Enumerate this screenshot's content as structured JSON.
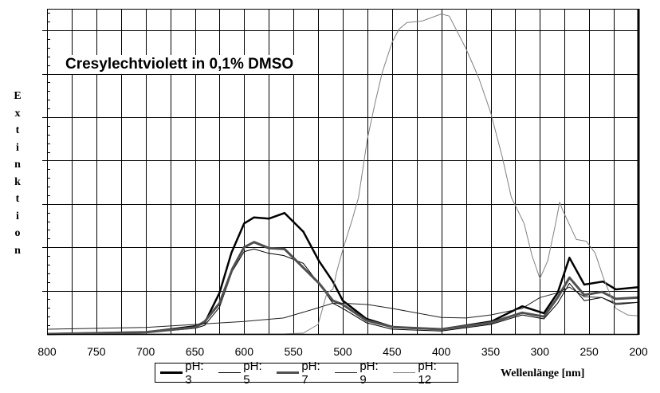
{
  "chart_data": {
    "type": "line",
    "title": "Cresylechtviolett in 0,1% DMSO",
    "xlabel": "Wellenlänge [nm]",
    "ylabel": "Extinktion",
    "xlim": [
      800,
      200
    ],
    "x_reversed": true,
    "ylim": [
      0,
      7.5
    ],
    "y_units": "gridline units (no tick labels printed)",
    "xticks": [
      800,
      750,
      700,
      650,
      600,
      550,
      500,
      450,
      400,
      350,
      300,
      250,
      200
    ],
    "grid": true,
    "legend_placement": "bottom",
    "series": [
      {
        "name": "pH: 3",
        "color": "#000000",
        "width": 2.5,
        "points": [
          [
            800,
            0
          ],
          [
            700,
            0.04
          ],
          [
            650,
            0.18
          ],
          [
            640,
            0.26
          ],
          [
            625,
            0.95
          ],
          [
            613,
            1.87
          ],
          [
            600,
            2.55
          ],
          [
            590,
            2.69
          ],
          [
            575,
            2.66
          ],
          [
            559,
            2.79
          ],
          [
            540,
            2.36
          ],
          [
            524,
            1.68
          ],
          [
            510,
            1.21
          ],
          [
            500,
            0.77
          ],
          [
            476,
            0.35
          ],
          [
            449,
            0.16
          ],
          [
            400,
            0.11
          ],
          [
            349,
            0.29
          ],
          [
            318,
            0.64
          ],
          [
            296,
            0.48
          ],
          [
            282,
            0.95
          ],
          [
            270,
            1.76
          ],
          [
            255,
            1.14
          ],
          [
            236,
            1.21
          ],
          [
            223,
            1.03
          ],
          [
            200,
            1.08
          ]
        ]
      },
      {
        "name": "pH: 5",
        "color": "#000000",
        "width": 1,
        "points": [
          [
            800,
            0
          ],
          [
            700,
            0.03
          ],
          [
            650,
            0.13
          ],
          [
            640,
            0.2
          ],
          [
            625,
            0.62
          ],
          [
            612,
            1.45
          ],
          [
            600,
            1.9
          ],
          [
            590,
            1.96
          ],
          [
            575,
            1.86
          ],
          [
            560,
            1.81
          ],
          [
            540,
            1.63
          ],
          [
            520,
            1.03
          ],
          [
            510,
            0.71
          ],
          [
            500,
            0.59
          ],
          [
            476,
            0.26
          ],
          [
            450,
            0.11
          ],
          [
            400,
            0.07
          ],
          [
            350,
            0.22
          ],
          [
            318,
            0.44
          ],
          [
            296,
            0.35
          ],
          [
            282,
            0.71
          ],
          [
            270,
            1.17
          ],
          [
            255,
            0.77
          ],
          [
            237,
            0.84
          ],
          [
            223,
            0.68
          ],
          [
            200,
            0.73
          ]
        ]
      },
      {
        "name": "pH: 7",
        "color": "#505050",
        "width": 3,
        "points": [
          [
            800,
            0
          ],
          [
            700,
            0.04
          ],
          [
            650,
            0.15
          ],
          [
            640,
            0.29
          ],
          [
            625,
            0.71
          ],
          [
            612,
            1.5
          ],
          [
            600,
            2.0
          ],
          [
            590,
            2.12
          ],
          [
            575,
            1.98
          ],
          [
            559,
            1.96
          ],
          [
            524,
            1.17
          ],
          [
            510,
            0.77
          ],
          [
            500,
            0.68
          ],
          [
            476,
            0.31
          ],
          [
            449,
            0.16
          ],
          [
            400,
            0.11
          ],
          [
            350,
            0.26
          ],
          [
            318,
            0.49
          ],
          [
            296,
            0.4
          ],
          [
            282,
            0.84
          ],
          [
            270,
            1.3
          ],
          [
            255,
            0.9
          ],
          [
            237,
            0.97
          ],
          [
            223,
            0.81
          ],
          [
            200,
            0.84
          ]
        ]
      },
      {
        "name": "pH: 9",
        "color": "#202020",
        "width": 1,
        "points": [
          [
            800,
            0.11
          ],
          [
            700,
            0.15
          ],
          [
            600,
            0.29
          ],
          [
            560,
            0.37
          ],
          [
            530,
            0.57
          ],
          [
            510,
            0.71
          ],
          [
            500,
            0.71
          ],
          [
            475,
            0.68
          ],
          [
            450,
            0.59
          ],
          [
            400,
            0.38
          ],
          [
            375,
            0.37
          ],
          [
            350,
            0.44
          ],
          [
            318,
            0.59
          ],
          [
            300,
            0.84
          ],
          [
            282,
            0.95
          ],
          [
            270,
            1.08
          ],
          [
            255,
            0.86
          ],
          [
            237,
            0.84
          ],
          [
            223,
            0.71
          ],
          [
            200,
            0.73
          ]
        ]
      },
      {
        "name": "pH: 12",
        "color": "#808080",
        "width": 1,
        "points": [
          [
            800,
            0
          ],
          [
            560,
            0
          ],
          [
            540,
            0.02
          ],
          [
            525,
            0.22
          ],
          [
            516,
            0.95
          ],
          [
            510,
            1.03
          ],
          [
            506,
            1.45
          ],
          [
            500,
            1.94
          ],
          [
            490,
            2.67
          ],
          [
            484,
            3.15
          ],
          [
            475,
            4.5
          ],
          [
            467,
            5.35
          ],
          [
            460,
            6.03
          ],
          [
            450,
            6.72
          ],
          [
            443,
            7.03
          ],
          [
            435,
            7.18
          ],
          [
            419,
            7.22
          ],
          [
            400,
            7.38
          ],
          [
            392,
            7.33
          ],
          [
            375,
            6.58
          ],
          [
            362,
            5.9
          ],
          [
            350,
            5.11
          ],
          [
            338,
            4.07
          ],
          [
            329,
            3.15
          ],
          [
            316,
            2.55
          ],
          [
            308,
            1.81
          ],
          [
            300,
            1.28
          ],
          [
            292,
            1.69
          ],
          [
            284,
            2.55
          ],
          [
            280,
            3.04
          ],
          [
            277,
            2.86
          ],
          [
            263,
            2.18
          ],
          [
            253,
            2.14
          ],
          [
            244,
            1.87
          ],
          [
            235,
            1.26
          ],
          [
            223,
            0.59
          ],
          [
            211,
            0.44
          ],
          [
            200,
            0.42
          ]
        ]
      }
    ]
  }
}
